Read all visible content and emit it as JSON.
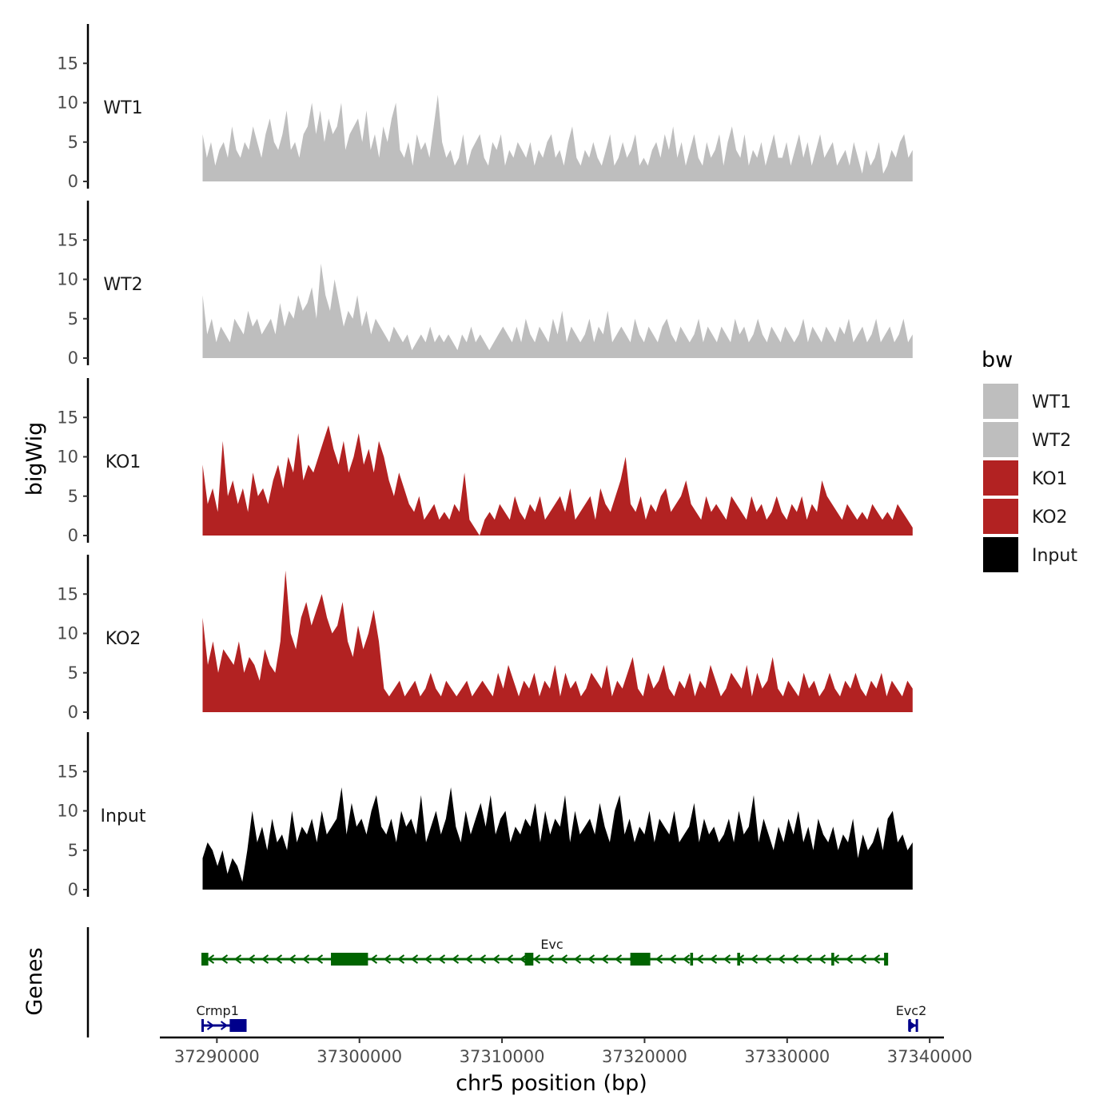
{
  "chart_data": {
    "type": "area",
    "chromosome": "chr5",
    "xlabel": "chr5 position (bp)",
    "ylabel": "bigWig",
    "genes_label": "Genes",
    "xlim": [
      37286000,
      37341000
    ],
    "data_range": [
      37289000,
      37338800
    ],
    "x_ticks": [
      37290000,
      37300000,
      37310000,
      37320000,
      37330000,
      37340000
    ],
    "x_tick_labels": [
      "37290000",
      "37300000",
      "37310000",
      "37320000",
      "37330000",
      "37340000"
    ],
    "ylim": [
      0,
      20
    ],
    "y_ticks": [
      0,
      5,
      10,
      15
    ],
    "y_tick_labels": [
      "0",
      "5",
      "10",
      "15"
    ],
    "legend": {
      "title": "bw",
      "entries": [
        {
          "label": "WT1",
          "color": "#bebebe"
        },
        {
          "label": "WT2",
          "color": "#bebebe"
        },
        {
          "label": "KO1",
          "color": "#b22222"
        },
        {
          "label": "KO2",
          "color": "#b22222"
        },
        {
          "label": "Input",
          "color": "#000000"
        }
      ]
    },
    "tracks": [
      {
        "name": "WT1",
        "color": "#bebebe",
        "values": [
          6,
          3,
          5,
          2,
          4,
          5,
          3,
          7,
          4,
          3,
          5,
          4,
          7,
          5,
          3,
          6,
          8,
          5,
          4,
          6,
          9,
          4,
          5,
          3,
          6,
          7,
          10,
          6,
          9,
          5,
          8,
          6,
          7,
          10,
          4,
          6,
          7,
          8,
          5,
          9,
          4,
          6,
          3,
          7,
          5,
          8,
          10,
          4,
          3,
          5,
          2,
          6,
          4,
          5,
          3,
          7,
          11,
          5,
          3,
          4,
          2,
          3,
          6,
          2,
          4,
          5,
          6,
          3,
          2,
          5,
          4,
          6,
          2,
          4,
          3,
          5,
          4,
          3,
          5,
          2,
          4,
          3,
          5,
          6,
          3,
          4,
          2,
          5,
          7,
          3,
          2,
          4,
          3,
          5,
          3,
          2,
          4,
          6,
          2,
          3,
          5,
          3,
          4,
          6,
          2,
          3,
          2,
          4,
          5,
          3,
          6,
          4,
          7,
          3,
          5,
          2,
          4,
          6,
          3,
          2,
          5,
          3,
          4,
          6,
          2,
          5,
          7,
          4,
          3,
          6,
          2,
          4,
          3,
          5,
          2,
          4,
          6,
          3,
          3,
          5,
          2,
          4,
          6,
          3,
          5,
          2,
          4,
          6,
          3,
          4,
          5,
          2,
          3,
          4,
          2,
          5,
          3,
          1,
          4,
          2,
          3,
          5,
          1,
          2,
          4,
          3,
          5,
          6,
          3,
          4
        ]
      },
      {
        "name": "WT2",
        "color": "#bebebe",
        "values": [
          8,
          3,
          5,
          2,
          4,
          3,
          2,
          5,
          4,
          3,
          6,
          4,
          5,
          3,
          4,
          5,
          3,
          7,
          4,
          6,
          5,
          8,
          6,
          7,
          9,
          5,
          12,
          8,
          6,
          10,
          7,
          4,
          6,
          5,
          8,
          4,
          6,
          3,
          5,
          4,
          3,
          2,
          4,
          3,
          2,
          3,
          1,
          2,
          3,
          2,
          4,
          2,
          3,
          2,
          3,
          2,
          1,
          3,
          2,
          4,
          2,
          3,
          2,
          1,
          2,
          3,
          4,
          3,
          2,
          4,
          2,
          5,
          3,
          2,
          4,
          3,
          2,
          5,
          3,
          6,
          2,
          4,
          3,
          2,
          3,
          5,
          2,
          4,
          3,
          6,
          2,
          3,
          4,
          3,
          2,
          5,
          3,
          2,
          4,
          3,
          2,
          4,
          5,
          3,
          2,
          4,
          3,
          2,
          3,
          5,
          2,
          4,
          3,
          2,
          4,
          3,
          2,
          5,
          3,
          4,
          2,
          3,
          5,
          3,
          2,
          4,
          3,
          2,
          4,
          3,
          2,
          3,
          5,
          2,
          4,
          3,
          2,
          4,
          3,
          2,
          4,
          3,
          5,
          2,
          3,
          4,
          2,
          3,
          5,
          2,
          3,
          4,
          2,
          3,
          5,
          2,
          3
        ]
      },
      {
        "name": "KO1",
        "color": "#b22222",
        "values": [
          9,
          4,
          6,
          3,
          12,
          5,
          7,
          4,
          6,
          3,
          8,
          5,
          6,
          4,
          7,
          9,
          6,
          10,
          8,
          13,
          7,
          9,
          8,
          10,
          12,
          14,
          11,
          9,
          12,
          8,
          10,
          13,
          9,
          11,
          8,
          12,
          10,
          7,
          5,
          8,
          6,
          4,
          3,
          5,
          2,
          3,
          4,
          2,
          3,
          2,
          4,
          3,
          8,
          2,
          1,
          0,
          2,
          3,
          2,
          4,
          3,
          2,
          5,
          3,
          2,
          4,
          3,
          5,
          2,
          3,
          4,
          5,
          3,
          6,
          2,
          3,
          4,
          5,
          2,
          6,
          4,
          3,
          5,
          7,
          10,
          4,
          3,
          5,
          2,
          4,
          3,
          5,
          6,
          3,
          4,
          5,
          7,
          4,
          3,
          2,
          5,
          3,
          4,
          3,
          2,
          5,
          4,
          3,
          2,
          5,
          3,
          4,
          2,
          3,
          5,
          3,
          2,
          4,
          3,
          5,
          2,
          4,
          3,
          7,
          5,
          4,
          3,
          2,
          4,
          3,
          2,
          3,
          2,
          4,
          3,
          2,
          3,
          2,
          4,
          3,
          2,
          1
        ]
      },
      {
        "name": "KO2",
        "color": "#b22222",
        "values": [
          12,
          6,
          9,
          5,
          8,
          7,
          6,
          9,
          5,
          7,
          6,
          4,
          8,
          6,
          5,
          9,
          18,
          10,
          8,
          12,
          14,
          11,
          13,
          15,
          12,
          10,
          11,
          14,
          9,
          7,
          11,
          8,
          10,
          13,
          9,
          3,
          2,
          3,
          4,
          2,
          3,
          4,
          2,
          3,
          5,
          3,
          2,
          4,
          3,
          2,
          3,
          4,
          2,
          3,
          4,
          3,
          2,
          5,
          3,
          6,
          4,
          2,
          4,
          3,
          5,
          2,
          4,
          3,
          6,
          2,
          5,
          3,
          4,
          2,
          3,
          5,
          4,
          3,
          6,
          2,
          4,
          3,
          5,
          7,
          3,
          2,
          5,
          3,
          4,
          6,
          3,
          2,
          4,
          3,
          5,
          2,
          4,
          3,
          6,
          4,
          2,
          3,
          5,
          4,
          3,
          6,
          2,
          5,
          3,
          4,
          7,
          3,
          2,
          4,
          3,
          2,
          5,
          3,
          4,
          2,
          3,
          5,
          3,
          2,
          4,
          3,
          5,
          3,
          2,
          4,
          3,
          5,
          2,
          4,
          3,
          2,
          4,
          3
        ]
      },
      {
        "name": "Input",
        "color": "#000000",
        "values": [
          4,
          6,
          5,
          3,
          5,
          2,
          4,
          3,
          1,
          5,
          10,
          6,
          8,
          5,
          9,
          6,
          7,
          5,
          10,
          6,
          8,
          7,
          9,
          6,
          10,
          7,
          8,
          9,
          13,
          7,
          11,
          8,
          9,
          7,
          10,
          12,
          8,
          7,
          9,
          6,
          10,
          8,
          9,
          7,
          12,
          6,
          8,
          10,
          7,
          9,
          13,
          8,
          6,
          10,
          7,
          9,
          11,
          8,
          12,
          7,
          9,
          10,
          6,
          8,
          7,
          9,
          8,
          11,
          6,
          10,
          7,
          9,
          8,
          12,
          6,
          10,
          7,
          8,
          9,
          7,
          11,
          8,
          6,
          10,
          12,
          7,
          9,
          6,
          8,
          7,
          10,
          6,
          9,
          8,
          7,
          10,
          6,
          7,
          8,
          11,
          6,
          9,
          7,
          8,
          6,
          7,
          9,
          6,
          10,
          7,
          8,
          12,
          6,
          9,
          7,
          5,
          8,
          6,
          9,
          7,
          10,
          6,
          8,
          5,
          9,
          7,
          6,
          8,
          5,
          7,
          6,
          9,
          4,
          7,
          5,
          6,
          8,
          5,
          9,
          10,
          6,
          7,
          5,
          6
        ]
      }
    ],
    "genes": [
      {
        "name": "Evc",
        "color": "#006400",
        "strand": "-",
        "start": 37289000,
        "end": 37337000,
        "exons": [
          [
            37289000,
            37289400
          ],
          [
            37298000,
            37300600
          ],
          [
            37311600,
            37312200
          ],
          [
            37319000,
            37320400
          ],
          [
            37323200,
            37323400
          ],
          [
            37326500,
            37326700
          ],
          [
            37333100,
            37333300
          ],
          [
            37336800,
            37337000
          ]
        ]
      },
      {
        "name": "Crmp1",
        "color": "#00008b",
        "strand": "+",
        "start": 37289000,
        "end": 37292000,
        "exons": [
          [
            37290900,
            37292000
          ]
        ]
      },
      {
        "name": "Evc2",
        "color": "#00008b",
        "strand": "+",
        "start": 37338600,
        "end": 37339100,
        "exons": []
      }
    ]
  }
}
